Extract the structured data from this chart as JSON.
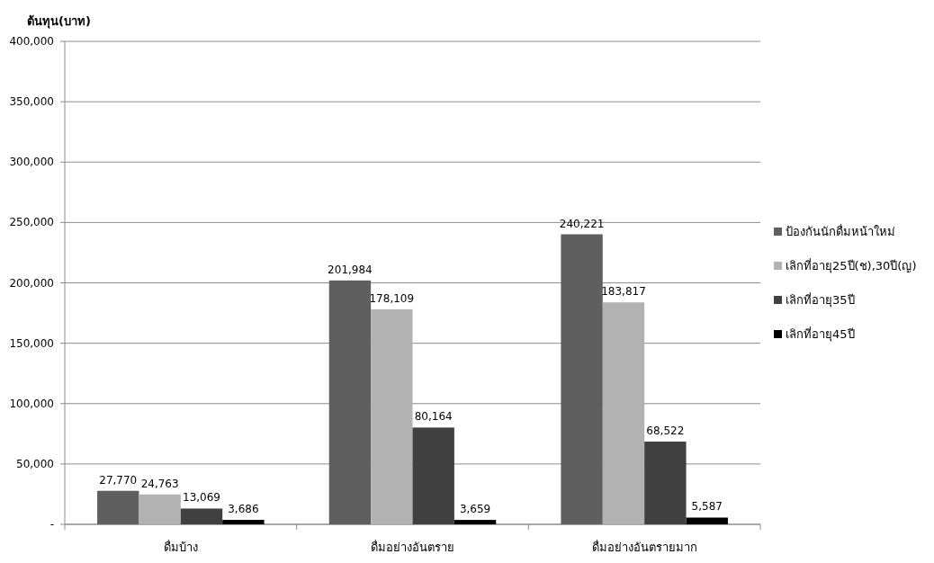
{
  "chart_data": {
    "type": "bar",
    "ylabel": "ต้นทุน(บาท)",
    "categories": [
      "ดื่มบ้าง",
      "ดื่มอย่างอันตราย",
      "ดื่มอย่างอันตรายมาก"
    ],
    "series": [
      {
        "name": "ป้องกันนักดื่มหน้าใหม่",
        "color": "#5f5f5f",
        "values": [
          27770,
          201984,
          240221
        ],
        "value_labels": [
          "27,770",
          "201,984",
          "240,221"
        ]
      },
      {
        "name": "เลิกที่อายุ25ปี(ช),30ปี(ญ)",
        "color": "#b2b2b2",
        "values": [
          24763,
          178109,
          183817
        ],
        "value_labels": [
          "24,763",
          "178,109",
          "183,817"
        ]
      },
      {
        "name": "เลิกที่อายุ35ปี",
        "color": "#404040",
        "values": [
          13069,
          80164,
          68522
        ],
        "value_labels": [
          "13,069",
          "80,164",
          "68,522"
        ]
      },
      {
        "name": "เลิกที่อายุ45ปี",
        "color": "#000000",
        "values": [
          3686,
          3659,
          5587
        ],
        "value_labels": [
          "3,686",
          "3,659",
          "5,587"
        ]
      }
    ],
    "ylim": [
      0,
      400000
    ],
    "yticks": [
      {
        "value": 0,
        "label": "-"
      },
      {
        "value": 50000,
        "label": "50,000"
      },
      {
        "value": 100000,
        "label": "100,000"
      },
      {
        "value": 150000,
        "label": "150,000"
      },
      {
        "value": 200000,
        "label": "200,000"
      },
      {
        "value": 250000,
        "label": "250,000"
      },
      {
        "value": 300000,
        "label": "300,000"
      },
      {
        "value": 350000,
        "label": "350,000"
      },
      {
        "value": 400000,
        "label": "400,000"
      }
    ],
    "grid": "y",
    "legend": "right"
  }
}
